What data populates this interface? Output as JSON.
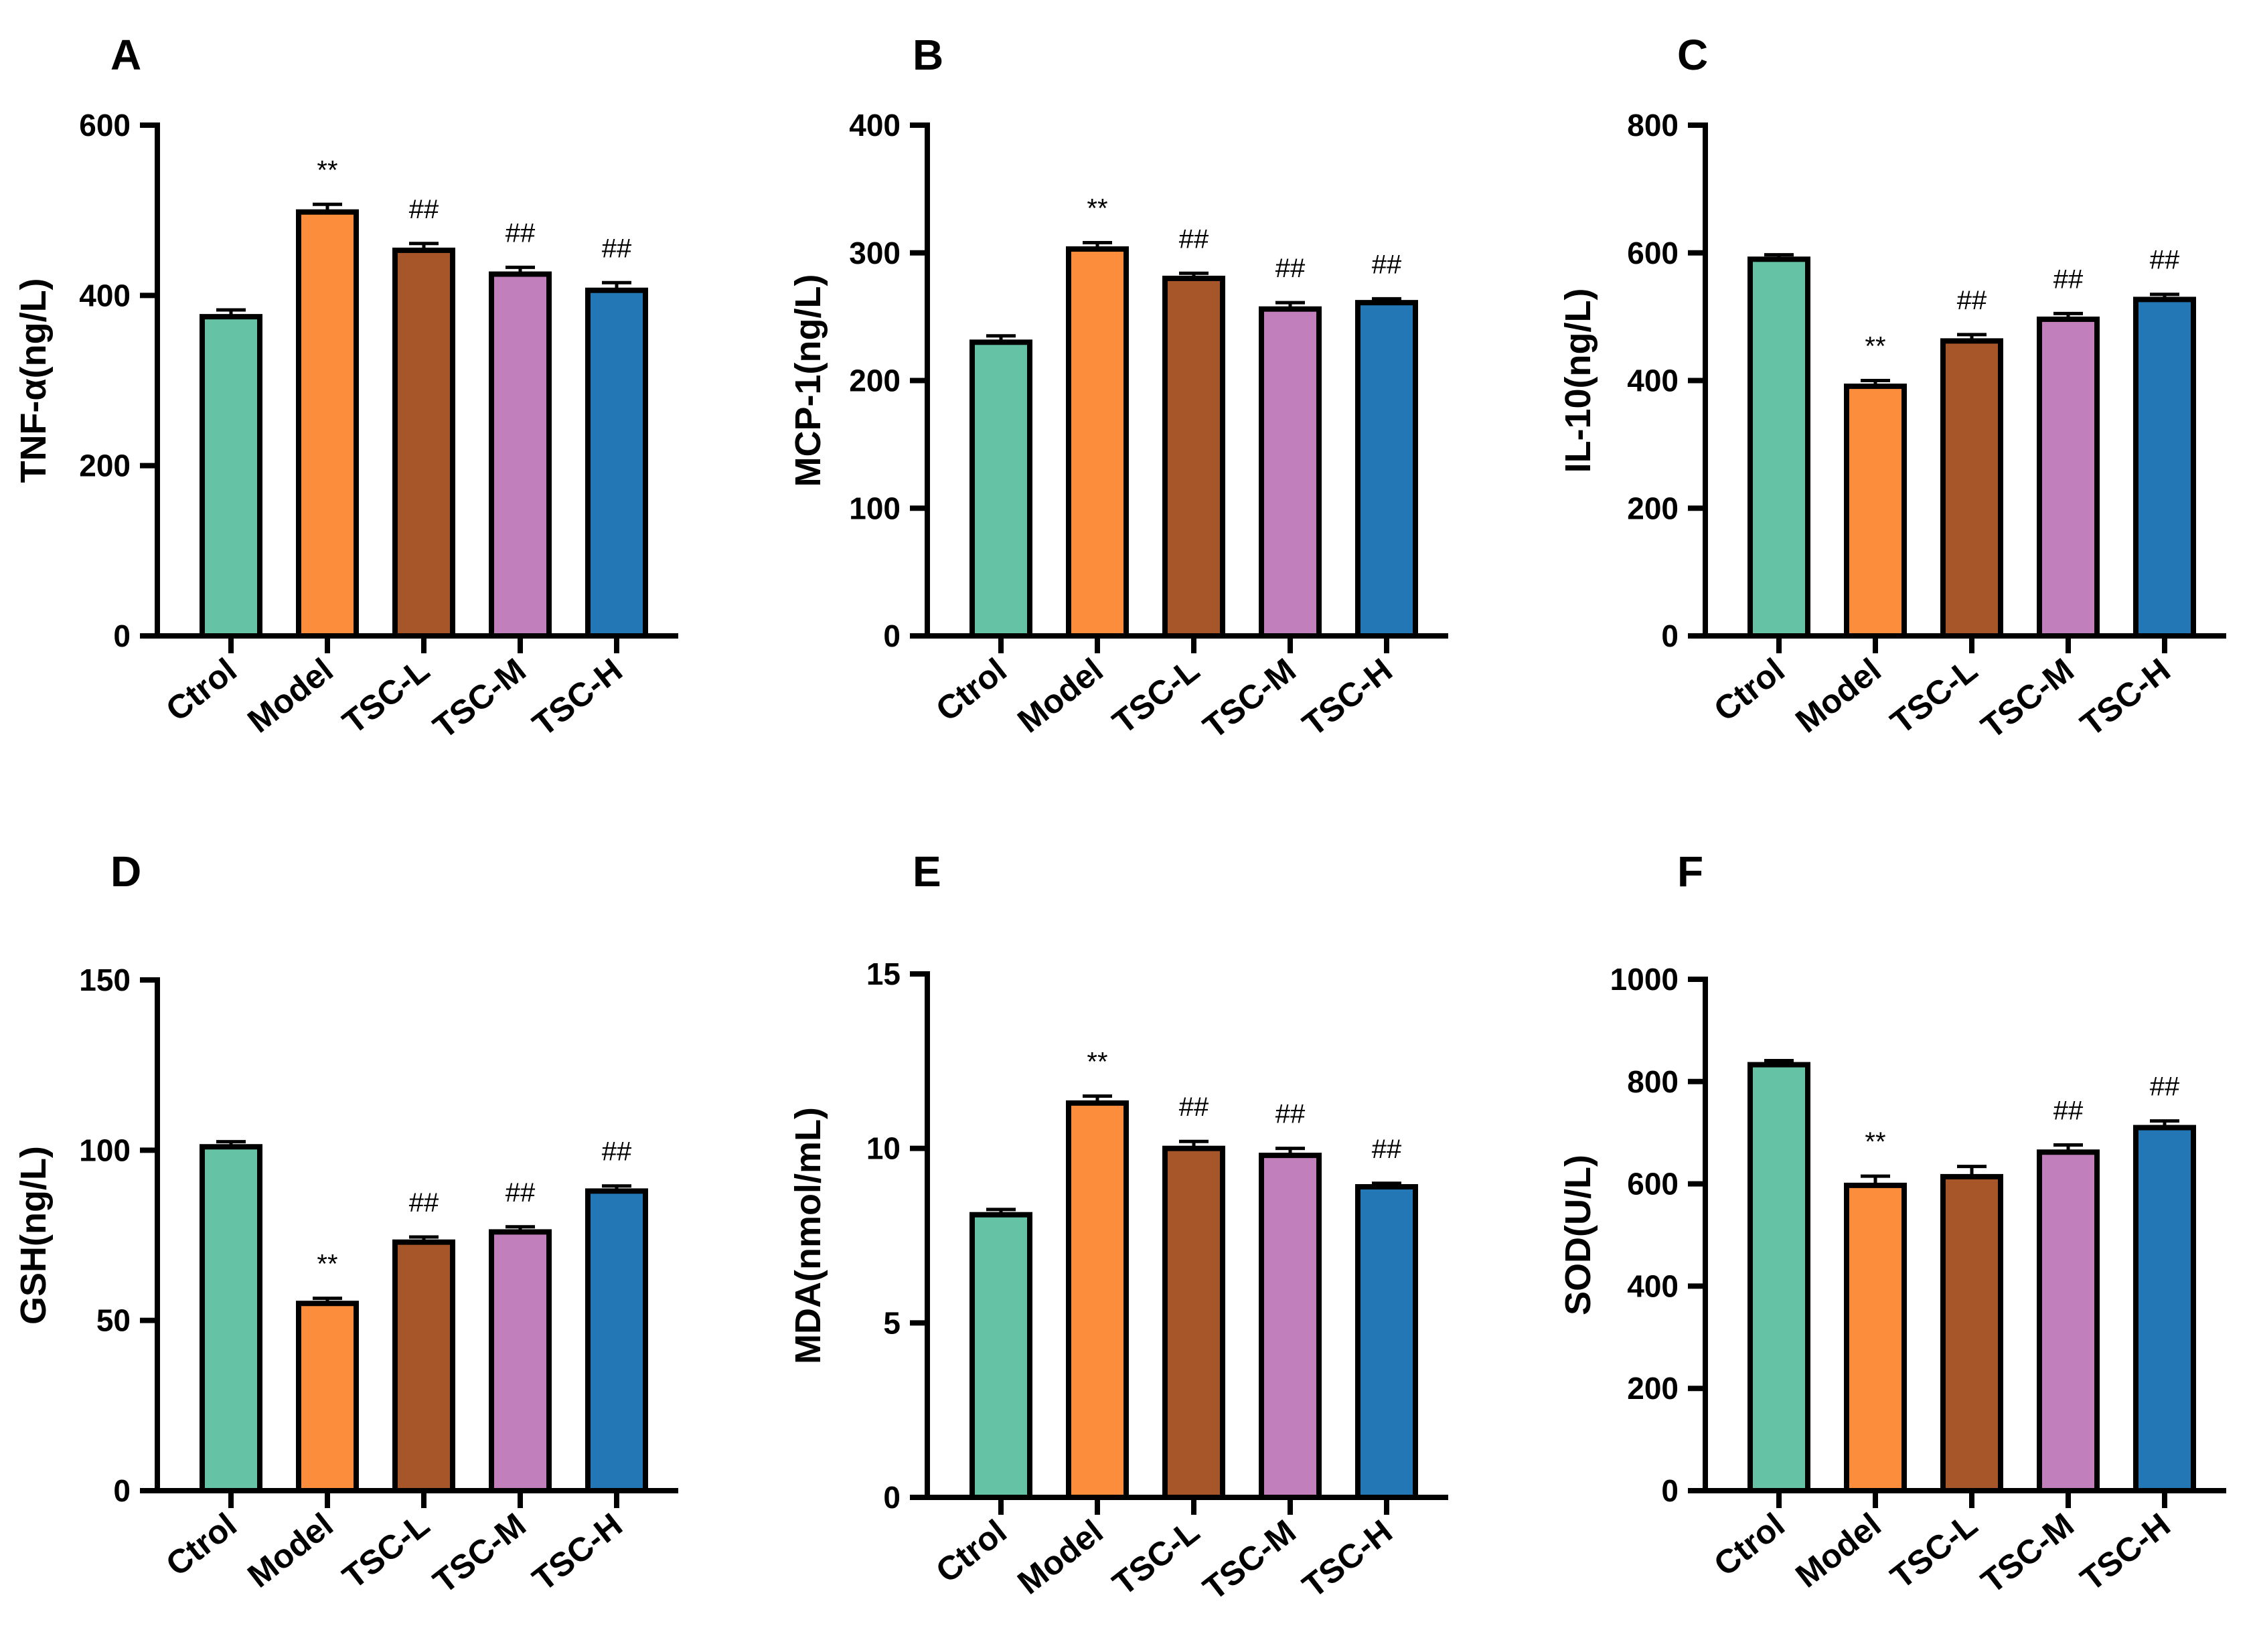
{
  "chart_data": [
    {
      "panel": "A",
      "type": "bar",
      "ylabel": "TNF-α(ng/L)",
      "ylim": [
        0,
        600
      ],
      "yticks": [
        0,
        200,
        400,
        600
      ],
      "categories": [
        "Ctrol",
        "Model",
        "TSC-L",
        "TSC-M",
        "TSC-H"
      ],
      "values": [
        375,
        498,
        453,
        425,
        406
      ],
      "errors": [
        8,
        9,
        8,
        8,
        9
      ],
      "annotations": [
        "",
        "**",
        "##",
        "##",
        "##"
      ],
      "colors": [
        "#66C2A5",
        "#FC8D3C",
        "#A65628",
        "#C17FBB",
        "#2277B4"
      ]
    },
    {
      "panel": "B",
      "type": "bar",
      "ylabel": "MCP-1(ng/L)",
      "ylim": [
        0,
        400
      ],
      "yticks": [
        0,
        100,
        200,
        300,
        400
      ],
      "categories": [
        "Ctrol",
        "Model",
        "TSC-L",
        "TSC-M",
        "TSC-H"
      ],
      "values": [
        230,
        303,
        280,
        256,
        261
      ],
      "errors": [
        5,
        5,
        4,
        5,
        3
      ],
      "annotations": [
        "",
        "**",
        "##",
        "##",
        "##"
      ],
      "colors": [
        "#66C2A5",
        "#FC8D3C",
        "#A65628",
        "#C17FBB",
        "#2277B4"
      ]
    },
    {
      "panel": "C",
      "type": "bar",
      "ylabel": "IL-10(ng/L)",
      "ylim": [
        0,
        800
      ],
      "yticks": [
        0,
        200,
        400,
        600,
        800
      ],
      "categories": [
        "Ctrol",
        "Model",
        "TSC-L",
        "TSC-M",
        "TSC-H"
      ],
      "values": [
        590,
        391,
        462,
        496,
        527
      ],
      "errors": [
        7,
        9,
        10,
        9,
        8
      ],
      "annotations": [
        "",
        "**",
        "##",
        "##",
        "##"
      ],
      "colors": [
        "#66C2A5",
        "#FC8D3C",
        "#A65628",
        "#C17FBB",
        "#2277B4"
      ]
    },
    {
      "panel": "D",
      "type": "bar",
      "ylabel": "GSH(ng/L)",
      "ylim": [
        0,
        150
      ],
      "yticks": [
        0,
        50,
        100,
        150
      ],
      "categories": [
        "Ctrol",
        "Model",
        "TSC-L",
        "TSC-M",
        "TSC-H"
      ],
      "values": [
        101,
        55,
        73,
        76,
        88
      ],
      "errors": [
        1.5,
        1.5,
        1.5,
        1.5,
        1.5
      ],
      "annotations": [
        "",
        "**",
        "##",
        "##",
        "##"
      ],
      "colors": [
        "#66C2A5",
        "#FC8D3C",
        "#A65628",
        "#C17FBB",
        "#2277B4"
      ]
    },
    {
      "panel": "E",
      "type": "bar",
      "ylabel": "MDA(nmol/mL)",
      "ylim": [
        0,
        15
      ],
      "yticks": [
        0,
        5,
        10,
        15
      ],
      "categories": [
        "Ctrol",
        "Model",
        "TSC-L",
        "TSC-M",
        "TSC-H"
      ],
      "values": [
        8.1,
        11.3,
        10.0,
        9.8,
        8.9
      ],
      "errors": [
        0.15,
        0.2,
        0.2,
        0.2,
        0.1
      ],
      "annotations": [
        "",
        "**",
        "##",
        "##",
        "##"
      ],
      "colors": [
        "#66C2A5",
        "#FC8D3C",
        "#A65628",
        "#C17FBB",
        "#2277B4"
      ]
    },
    {
      "panel": "F",
      "type": "bar",
      "ylabel": "SOD(U/L)",
      "ylim": [
        0,
        1000
      ],
      "yticks": [
        0,
        200,
        400,
        600,
        800,
        1000
      ],
      "categories": [
        "Ctrol",
        "Model",
        "TSC-L",
        "TSC-M",
        "TSC-H"
      ],
      "values": [
        833,
        597,
        614,
        662,
        710
      ],
      "errors": [
        8,
        18,
        20,
        14,
        13
      ],
      "annotations": [
        "",
        "**",
        "",
        "##",
        "##"
      ],
      "colors": [
        "#66C2A5",
        "#FC8D3C",
        "#A65628",
        "#C17FBB",
        "#2277B4"
      ]
    }
  ]
}
